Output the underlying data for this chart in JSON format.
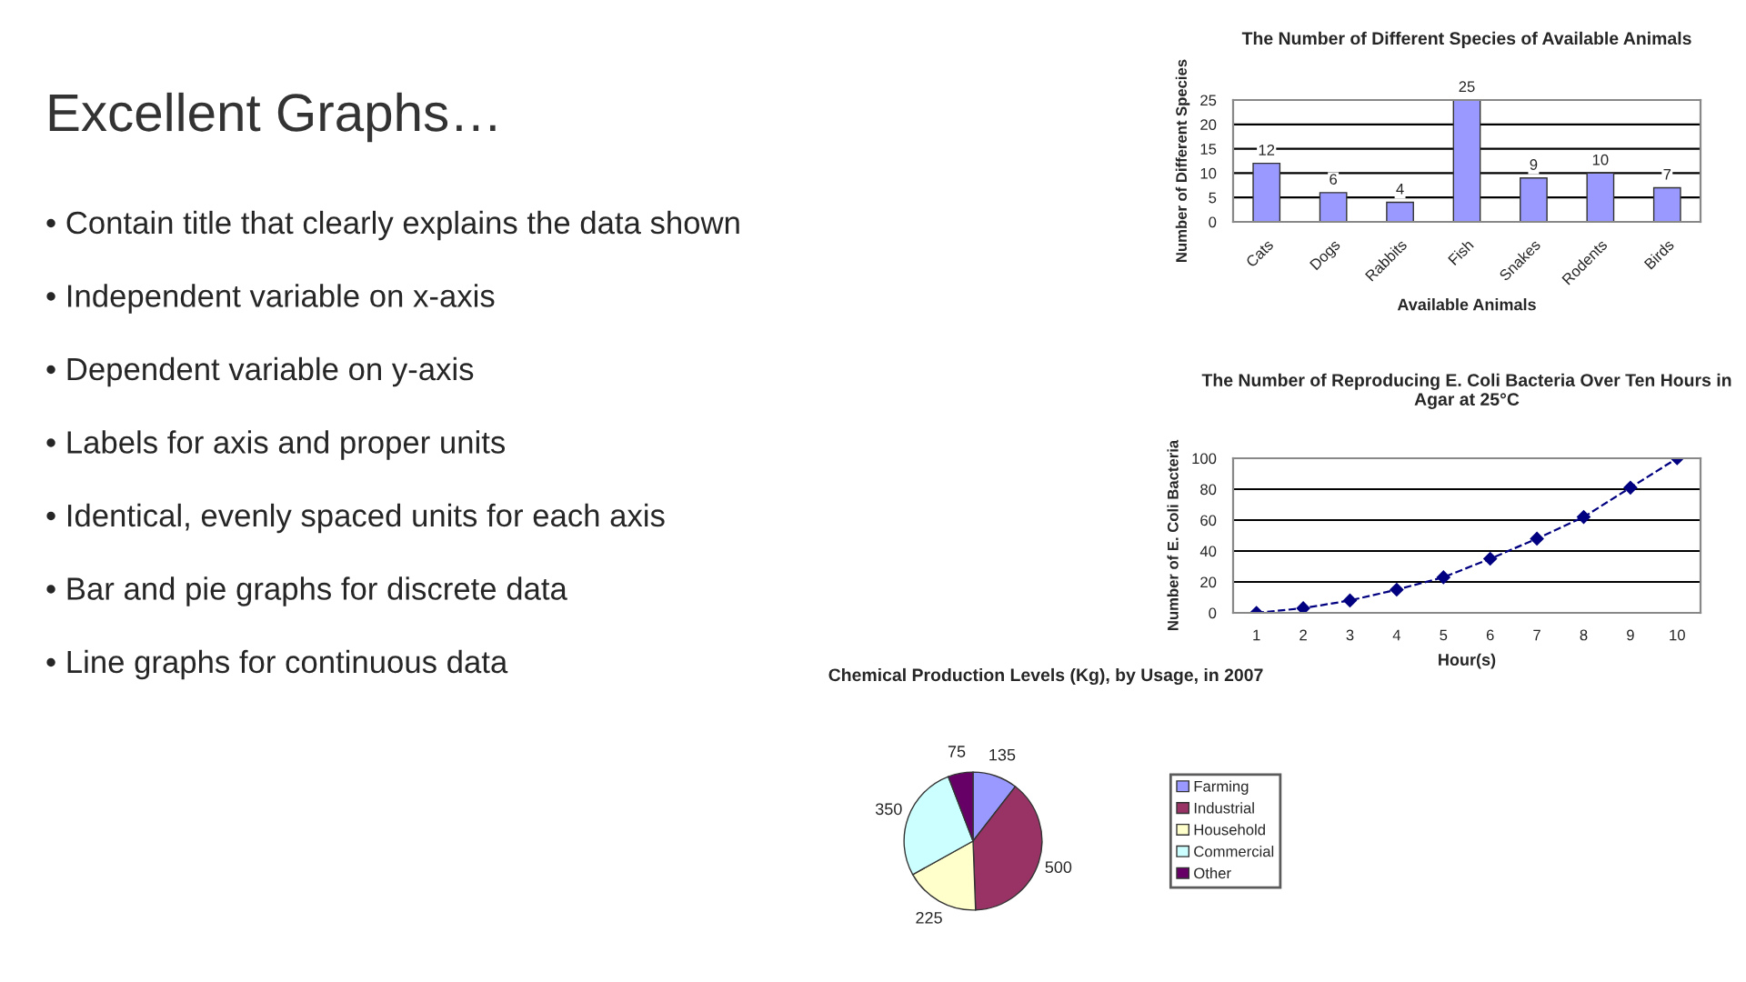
{
  "chart_data": [
    {
      "type": "other",
      "title": "Excellent Graphs…",
      "annotations": [
        "• Contain title that clearly explains the data shown",
        "• Independent variable on x-axis",
        "• Dependent variable on y-axis",
        "• Labels for axis and proper units",
        "• Identical, evenly spaced units for each axis",
        "• Bar and pie graphs for discrete data",
        "• Line graphs for continuous data"
      ]
    },
    {
      "type": "bar",
      "title": "The Number of Different Species of Available Animals",
      "xlabel": "Available Animals",
      "ylabel": "Number of Different Species",
      "categories": [
        "Cats",
        "Dogs",
        "Rabbits",
        "Fish",
        "Snakes",
        "Rodents",
        "Birds"
      ],
      "values": [
        12,
        6,
        4,
        25,
        9,
        10,
        7
      ],
      "color": "#9999ff",
      "ylim": [
        0,
        25
      ],
      "yticks": [
        0,
        5,
        10,
        15,
        20,
        25
      ],
      "grid": "y",
      "data_labels": true
    },
    {
      "type": "line",
      "title": "The Number of Reproducing E. Coli Bacteria Over Ten Hours in Agar at 25°C",
      "xlabel": "Hour(s)",
      "ylabel": "Number of E. Coli Bacteria",
      "categories": [
        "1",
        "2",
        "3",
        "4",
        "5",
        "6",
        "7",
        "8",
        "9",
        "10"
      ],
      "series": [
        {
          "color": "#000080",
          "values": [
            0,
            3,
            8,
            15,
            23,
            35,
            48,
            62,
            81,
            100
          ]
        }
      ],
      "ylim": [
        0,
        100
      ],
      "yticks": [
        0,
        20,
        40,
        60,
        80,
        100
      ],
      "grid": "y",
      "marker": "diamond",
      "line_style": "dashed"
    },
    {
      "type": "pie",
      "title": "Chemical Production Levels (Kg), by Usage, in 2007",
      "categories": [
        "Farming",
        "Industrial",
        "Household",
        "Commercial",
        "Other"
      ],
      "values": [
        135,
        500,
        225,
        350,
        75
      ],
      "colors": [
        "#9999ff",
        "#993366",
        "#ffffcc",
        "#ccffff",
        "#660066"
      ],
      "data_labels": true,
      "legend": "right"
    }
  ]
}
